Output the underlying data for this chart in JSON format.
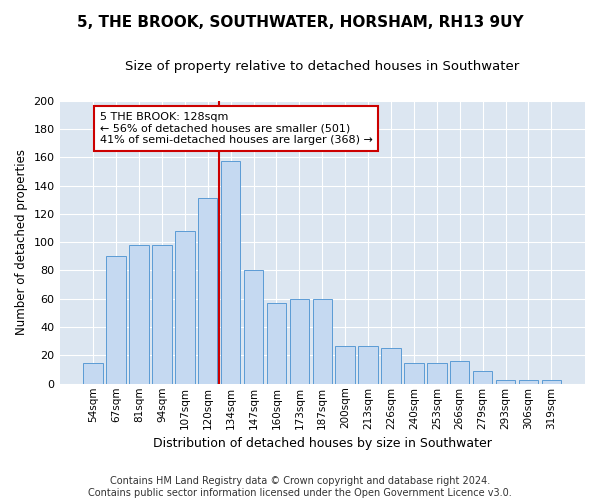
{
  "title": "5, THE BROOK, SOUTHWATER, HORSHAM, RH13 9UY",
  "subtitle": "Size of property relative to detached houses in Southwater",
  "xlabel": "Distribution of detached houses by size in Southwater",
  "ylabel": "Number of detached properties",
  "categories": [
    "54sqm",
    "67sqm",
    "81sqm",
    "94sqm",
    "107sqm",
    "120sqm",
    "134sqm",
    "147sqm",
    "160sqm",
    "173sqm",
    "187sqm",
    "200sqm",
    "213sqm",
    "226sqm",
    "240sqm",
    "253sqm",
    "266sqm",
    "279sqm",
    "293sqm",
    "306sqm",
    "319sqm"
  ],
  "values": [
    15,
    90,
    98,
    98,
    108,
    131,
    157,
    80,
    57,
    60,
    60,
    27,
    27,
    25,
    15,
    15,
    16,
    9,
    3,
    3,
    3
  ],
  "bar_color": "#c5d9f1",
  "bar_edge_color": "#5b9bd5",
  "background_color": "#ffffff",
  "plot_bg_color": "#dce6f1",
  "grid_color": "#ffffff",
  "annotation_text": "5 THE BROOK: 128sqm\n← 56% of detached houses are smaller (501)\n41% of semi-detached houses are larger (368) →",
  "annotation_box_edge": "#cc0000",
  "property_line_color": "#cc0000",
  "property_line_bar_index": 6,
  "ylim": [
    0,
    200
  ],
  "yticks": [
    0,
    20,
    40,
    60,
    80,
    100,
    120,
    140,
    160,
    180,
    200
  ],
  "footer_text": "Contains HM Land Registry data © Crown copyright and database right 2024.\nContains public sector information licensed under the Open Government Licence v3.0.",
  "title_fontsize": 11,
  "subtitle_fontsize": 9.5,
  "xlabel_fontsize": 9,
  "ylabel_fontsize": 8.5,
  "annotation_fontsize": 8,
  "footer_fontsize": 7,
  "tick_labelsize": 7.5,
  "ytick_labelsize": 8
}
